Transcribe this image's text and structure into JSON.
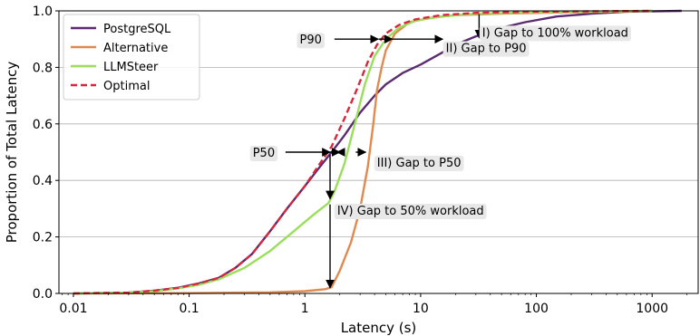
{
  "chart_data": {
    "type": "line",
    "xlabel": "Latency (s)",
    "ylabel": "Proportion of Total Latency",
    "xscale": "log",
    "xlim": [
      0.0075,
      2500
    ],
    "ylim": [
      0,
      1
    ],
    "xticks": [
      0.01,
      0.1,
      1,
      10,
      100,
      1000
    ],
    "xtick_labels": [
      "0.01",
      "0.1",
      "1",
      "10",
      "100",
      "1000"
    ],
    "yticks": [
      0,
      0.2,
      0.4,
      0.6,
      0.8,
      1.0
    ],
    "ytick_labels": [
      "0.0",
      "0.2",
      "0.4",
      "0.6",
      "0.8",
      "1.0"
    ],
    "grid": "horizontal",
    "legend": "top-left",
    "series": [
      {
        "name": "PostgreSQL",
        "color": "#5b2c6f",
        "dash": false,
        "points": [
          [
            0.01,
            0.0
          ],
          [
            0.03,
            0.003
          ],
          [
            0.05,
            0.01
          ],
          [
            0.08,
            0.02
          ],
          [
            0.12,
            0.035
          ],
          [
            0.18,
            0.055
          ],
          [
            0.25,
            0.09
          ],
          [
            0.35,
            0.14
          ],
          [
            0.5,
            0.22
          ],
          [
            0.7,
            0.3
          ],
          [
            1.0,
            0.38
          ],
          [
            1.3,
            0.44
          ],
          [
            1.7,
            0.5
          ],
          [
            2.2,
            0.56
          ],
          [
            3.0,
            0.64
          ],
          [
            4.0,
            0.7
          ],
          [
            5.0,
            0.74
          ],
          [
            7.0,
            0.78
          ],
          [
            10.0,
            0.81
          ],
          [
            15.0,
            0.85
          ],
          [
            20.0,
            0.88
          ],
          [
            30.0,
            0.91
          ],
          [
            50.0,
            0.94
          ],
          [
            80.0,
            0.96
          ],
          [
            150.0,
            0.98
          ],
          [
            300.0,
            0.99
          ],
          [
            600.0,
            0.997
          ],
          [
            1800.0,
            1.0
          ]
        ]
      },
      {
        "name": "Alternative",
        "color": "#e08a50",
        "dash": false,
        "points": [
          [
            0.01,
            0.0
          ],
          [
            0.1,
            0.001
          ],
          [
            0.5,
            0.004
          ],
          [
            1.0,
            0.008
          ],
          [
            1.5,
            0.015
          ],
          [
            1.7,
            0.022
          ],
          [
            2.0,
            0.08
          ],
          [
            2.5,
            0.18
          ],
          [
            3.0,
            0.3
          ],
          [
            3.5,
            0.45
          ],
          [
            3.9,
            0.6
          ],
          [
            4.2,
            0.72
          ],
          [
            4.6,
            0.8
          ],
          [
            5.0,
            0.86
          ],
          [
            6.0,
            0.92
          ],
          [
            8.0,
            0.96
          ],
          [
            12.0,
            0.975
          ],
          [
            20.0,
            0.985
          ],
          [
            50.0,
            0.99
          ],
          [
            200.0,
            0.995
          ],
          [
            1000.0,
            1.0
          ]
        ]
      },
      {
        "name": "LLMSteer",
        "color": "#9ade5a",
        "dash": false,
        "points": [
          [
            0.01,
            0.0
          ],
          [
            0.03,
            0.003
          ],
          [
            0.05,
            0.008
          ],
          [
            0.08,
            0.018
          ],
          [
            0.12,
            0.03
          ],
          [
            0.18,
            0.05
          ],
          [
            0.3,
            0.09
          ],
          [
            0.5,
            0.15
          ],
          [
            0.8,
            0.22
          ],
          [
            1.2,
            0.28
          ],
          [
            1.6,
            0.32
          ],
          [
            1.8,
            0.36
          ],
          [
            2.2,
            0.46
          ],
          [
            2.7,
            0.6
          ],
          [
            3.3,
            0.74
          ],
          [
            4.0,
            0.84
          ],
          [
            5.0,
            0.9
          ],
          [
            6.5,
            0.94
          ],
          [
            9.0,
            0.965
          ],
          [
            15.0,
            0.98
          ],
          [
            30.0,
            0.99
          ],
          [
            100.0,
            0.995
          ],
          [
            1000.0,
            1.0
          ]
        ]
      },
      {
        "name": "Optimal",
        "color": "#d7263d",
        "dash": true,
        "points": [
          [
            0.01,
            0.0
          ],
          [
            0.03,
            0.003
          ],
          [
            0.05,
            0.01
          ],
          [
            0.08,
            0.02
          ],
          [
            0.12,
            0.035
          ],
          [
            0.18,
            0.055
          ],
          [
            0.25,
            0.09
          ],
          [
            0.35,
            0.14
          ],
          [
            0.5,
            0.22
          ],
          [
            0.7,
            0.3
          ],
          [
            1.0,
            0.38
          ],
          [
            1.3,
            0.45
          ],
          [
            1.7,
            0.52
          ],
          [
            2.2,
            0.62
          ],
          [
            2.8,
            0.72
          ],
          [
            3.5,
            0.82
          ],
          [
            4.2,
            0.88
          ],
          [
            5.0,
            0.92
          ],
          [
            6.5,
            0.95
          ],
          [
            9.0,
            0.97
          ],
          [
            15.0,
            0.985
          ],
          [
            30.0,
            0.993
          ],
          [
            100.0,
            0.997
          ],
          [
            1000.0,
            1.0
          ]
        ]
      }
    ],
    "annotations": [
      {
        "label": "P90",
        "from": [
          1.8,
          0.9
        ],
        "to": [
          4.3,
          0.9
        ],
        "label_at": [
          1.4,
          0.9
        ]
      },
      {
        "label": "II) Gap to P90",
        "from": [
          5.7,
          0.9
        ],
        "to": [
          15.5,
          0.9
        ],
        "label_at": [
          16.5,
          0.87
        ]
      },
      {
        "label": "I) Gap to 100% workload",
        "from": [
          32.0,
          0.988
        ],
        "to": [
          32.0,
          0.905
        ],
        "label_at": [
          34.0,
          0.925
        ]
      },
      {
        "label": "P50",
        "from": [
          0.68,
          0.5
        ],
        "to": [
          1.65,
          0.5
        ],
        "label_at": [
          0.55,
          0.5
        ]
      },
      {
        "label": "III) Gap to P50",
        "from": [
          2.75,
          0.5
        ],
        "to": [
          3.35,
          0.5
        ],
        "label_at": [
          4.2,
          0.465
        ]
      },
      {
        "label": "IV) Gap to 50% workload",
        "from": [
          1.65,
          0.49
        ],
        "to": [
          1.65,
          0.335
        ],
        "label_at": [
          1.9,
          0.295
        ]
      },
      {
        "label": "",
        "from": [
          1.65,
          0.315
        ],
        "to": [
          1.65,
          0.02
        ],
        "label_at": [
          1.65,
          0.0
        ]
      },
      {
        "label": "",
        "from": [
          1.65,
          0.5
        ],
        "to": [
          2.0,
          0.5
        ],
        "label_at": [
          2.0,
          0.5
        ]
      },
      {
        "label": "",
        "from": [
          2.2,
          0.5
        ],
        "to": [
          1.9,
          0.5
        ],
        "label_at": [
          1.9,
          0.5
        ]
      },
      {
        "label": "",
        "from": [
          4.35,
          0.9
        ],
        "to": [
          5.7,
          0.9
        ],
        "label_at": [
          5.7,
          0.9
        ]
      }
    ]
  }
}
